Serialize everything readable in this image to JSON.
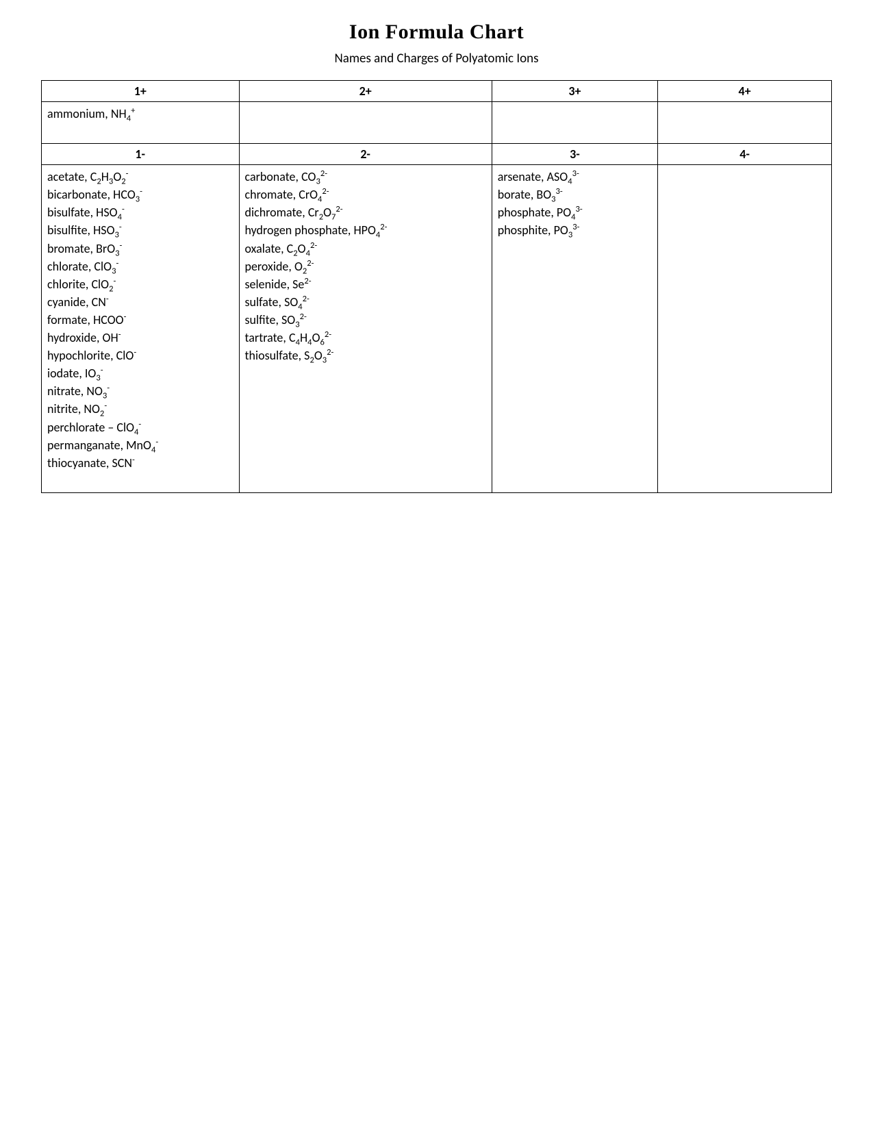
{
  "title": "Ion Formula Chart",
  "subtitle": "Names and Charges of Polyatomic Ions",
  "headers_positive": [
    "1+",
    "2+",
    "3+",
    "4+"
  ],
  "headers_negative": [
    "1-",
    "2-",
    "3-",
    "4-"
  ],
  "cations": {
    "col1": [
      {
        "name": "ammonium",
        "formula": "NH",
        "sub": "4",
        "sup": "+"
      }
    ],
    "col2": [],
    "col3": [],
    "col4": []
  },
  "anions": {
    "col1": [
      {
        "name": "acetate",
        "parts": [
          {
            "t": "C"
          },
          {
            "sub": "2"
          },
          {
            "t": "H"
          },
          {
            "sub": "3"
          },
          {
            "t": "O"
          },
          {
            "sub": "2"
          },
          {
            "sup": "-"
          }
        ]
      },
      {
        "name": "bicarbonate",
        "parts": [
          {
            "t": "HCO"
          },
          {
            "sub": "3"
          },
          {
            "sup": "-"
          }
        ]
      },
      {
        "name": "bisulfate",
        "parts": [
          {
            "t": "HSO"
          },
          {
            "sub": "4"
          },
          {
            "sup": "-"
          }
        ]
      },
      {
        "name": "bisulfite",
        "parts": [
          {
            "t": "HSO"
          },
          {
            "sub": "3"
          },
          {
            "sup": "-"
          }
        ]
      },
      {
        "name": "bromate",
        "parts": [
          {
            "t": "BrO"
          },
          {
            "sub": "3"
          },
          {
            "sup": "-"
          }
        ]
      },
      {
        "name": "chlorate",
        "parts": [
          {
            "t": "ClO"
          },
          {
            "sub": "3"
          },
          {
            "sup": "-"
          }
        ]
      },
      {
        "name": "chlorite",
        "parts": [
          {
            "t": "ClO"
          },
          {
            "sub": "2"
          },
          {
            "sup": "-"
          }
        ]
      },
      {
        "name": "cyanide",
        "parts": [
          {
            "t": "CN"
          },
          {
            "sup": "-"
          }
        ]
      },
      {
        "name": "formate",
        "parts": [
          {
            "t": "HCOO"
          },
          {
            "sup": "-"
          }
        ]
      },
      {
        "name": "hydroxide",
        "parts": [
          {
            "t": "OH"
          },
          {
            "sup": "-"
          }
        ]
      },
      {
        "name": "hypochlorite",
        "parts": [
          {
            "t": "ClO"
          },
          {
            "sup": "-"
          }
        ]
      },
      {
        "name": "iodate",
        "parts": [
          {
            "t": "IO"
          },
          {
            "sub": "3"
          },
          {
            "sup": "-"
          }
        ]
      },
      {
        "name": "nitrate",
        "parts": [
          {
            "t": "NO"
          },
          {
            "sub": "3"
          },
          {
            "sup": "-"
          }
        ]
      },
      {
        "name": "nitrite",
        "parts": [
          {
            "t": "NO"
          },
          {
            "sub": "2"
          },
          {
            "sup": "-"
          }
        ]
      },
      {
        "name": "perchlorate",
        "sep": " – ",
        "parts": [
          {
            "t": "ClO"
          },
          {
            "sub": "4"
          },
          {
            "sup": "-"
          }
        ]
      },
      {
        "name": "permanganate",
        "parts": [
          {
            "t": "MnO"
          },
          {
            "sub": "4"
          },
          {
            "sup": "-"
          }
        ]
      },
      {
        "name": "thiocyanate",
        "parts": [
          {
            "t": "SCN"
          },
          {
            "sup": "-"
          }
        ]
      }
    ],
    "col2": [
      {
        "name": "carbonate",
        "parts": [
          {
            "t": "CO"
          },
          {
            "sub": "3"
          },
          {
            "sup": "2-"
          }
        ]
      },
      {
        "name": "chromate",
        "parts": [
          {
            "t": "CrO"
          },
          {
            "sub": "4"
          },
          {
            "sup": "2-"
          }
        ]
      },
      {
        "name": "dichromate",
        "parts": [
          {
            "t": "Cr"
          },
          {
            "sub": "2"
          },
          {
            "t": "O"
          },
          {
            "sub": "7"
          },
          {
            "sup": "2-"
          }
        ]
      },
      {
        "name": "hydrogen phosphate",
        "parts": [
          {
            "t": "HPO"
          },
          {
            "sub": "4"
          },
          {
            "sup": "2-"
          }
        ]
      },
      {
        "name": "oxalate",
        "parts": [
          {
            "t": "C"
          },
          {
            "sub": "2"
          },
          {
            "t": "O"
          },
          {
            "sub": "4"
          },
          {
            "sup": "2-"
          }
        ]
      },
      {
        "name": "peroxide",
        "parts": [
          {
            "t": "O"
          },
          {
            "sub": "2"
          },
          {
            "sup": "2-"
          }
        ]
      },
      {
        "name": "selenide",
        "parts": [
          {
            "t": "Se"
          },
          {
            "sup": "2-"
          }
        ]
      },
      {
        "name": "sulfate",
        "parts": [
          {
            "t": "SO"
          },
          {
            "sub": "4"
          },
          {
            "sup": "2-"
          }
        ]
      },
      {
        "name": "sulfite",
        "parts": [
          {
            "t": "SO"
          },
          {
            "sub": "3"
          },
          {
            "sup": "2-"
          }
        ]
      },
      {
        "name": "tartrate",
        "parts": [
          {
            "t": "C"
          },
          {
            "sub": "4"
          },
          {
            "t": "H"
          },
          {
            "sub": "4"
          },
          {
            "t": "O"
          },
          {
            "sub": "6"
          },
          {
            "sup": "2-"
          }
        ]
      },
      {
        "name": "thiosulfate",
        "parts": [
          {
            "t": "S"
          },
          {
            "sub": "2"
          },
          {
            "t": "O"
          },
          {
            "sub": "3"
          },
          {
            "sup": "2-"
          }
        ]
      }
    ],
    "col3": [
      {
        "name": "arsenate",
        "parts": [
          {
            "t": "ASO"
          },
          {
            "sub": "4"
          },
          {
            "sup": "3-"
          }
        ]
      },
      {
        "name": "borate",
        "parts": [
          {
            "t": "BO"
          },
          {
            "sub": "3"
          },
          {
            "sup": "3-"
          }
        ]
      },
      {
        "name": "phosphate",
        "parts": [
          {
            "t": "PO"
          },
          {
            "sub": "4"
          },
          {
            "sup": "3-"
          }
        ]
      },
      {
        "name": "phosphite",
        "parts": [
          {
            "t": "PO"
          },
          {
            "sub": "3"
          },
          {
            "sup": "3-"
          }
        ]
      }
    ],
    "col4": []
  }
}
